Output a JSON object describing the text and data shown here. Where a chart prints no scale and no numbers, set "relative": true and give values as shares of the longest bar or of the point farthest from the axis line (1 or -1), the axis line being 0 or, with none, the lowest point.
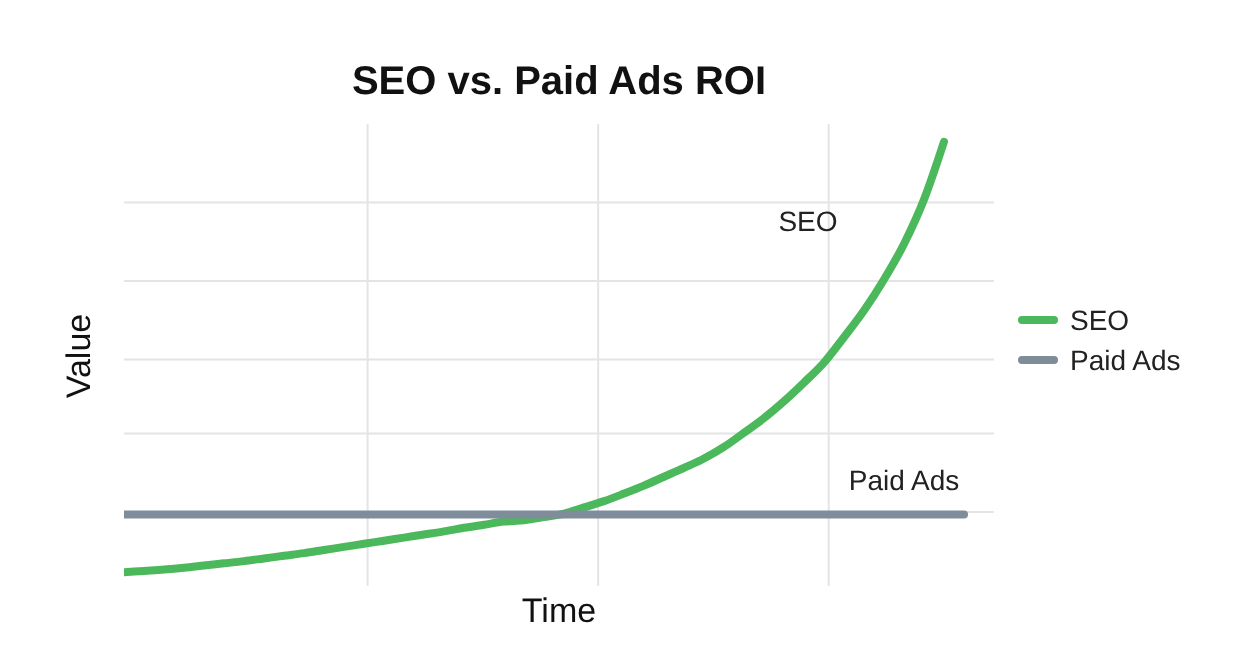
{
  "chart_data": {
    "type": "line",
    "title": "SEO vs. Paid Ads ROI",
    "xlabel": "Time",
    "ylabel": "Value",
    "relative": true,
    "grid": true,
    "legend": "right",
    "tick_labels": false,
    "marker": "none",
    "line_style": "solid",
    "categories": [
      null,
      null,
      null,
      null,
      null,
      null,
      null,
      null,
      null,
      null,
      null,
      null,
      null,
      null,
      null,
      null,
      null,
      null,
      null,
      null,
      null,
      null,
      null,
      null,
      null,
      null,
      null,
      null,
      null,
      null,
      null,
      null,
      null,
      null,
      null,
      null,
      null,
      null,
      null,
      null,
      null,
      null,
      null
    ],
    "series": [
      {
        "name": "SEO",
        "color": "#4cb85c",
        "values": [
          0.031,
          0.034,
          0.037,
          0.041,
          0.046,
          0.051,
          0.056,
          0.062,
          0.068,
          0.074,
          0.081,
          0.088,
          0.095,
          0.102,
          0.109,
          0.116,
          0.123,
          0.131,
          0.138,
          0.145,
          0.148,
          0.155,
          0.163,
          0.177,
          0.191,
          0.208,
          0.226,
          0.246,
          0.266,
          0.287,
          0.313,
          0.345,
          0.378,
          0.416,
          0.458,
          0.503,
          0.56,
          0.62,
          0.69,
          0.77,
          0.87,
          1,
          null
        ]
      },
      {
        "name": "Paid Ads",
        "color": "#7f8c99",
        "values": [
          0.161,
          0.161,
          0.161,
          0.161,
          0.161,
          0.161,
          0.161,
          0.161,
          0.161,
          0.161,
          0.161,
          0.161,
          0.161,
          0.161,
          0.161,
          0.161,
          0.161,
          0.161,
          0.161,
          0.161,
          0.161,
          0.161,
          0.161,
          0.161,
          0.161,
          0.161,
          0.161,
          0.161,
          0.161,
          0.161,
          0.161,
          0.161,
          0.161,
          0.161,
          0.161,
          0.161,
          0.161,
          0.161,
          0.161,
          0.161,
          0.161,
          0.161,
          0.161
        ]
      }
    ]
  }
}
